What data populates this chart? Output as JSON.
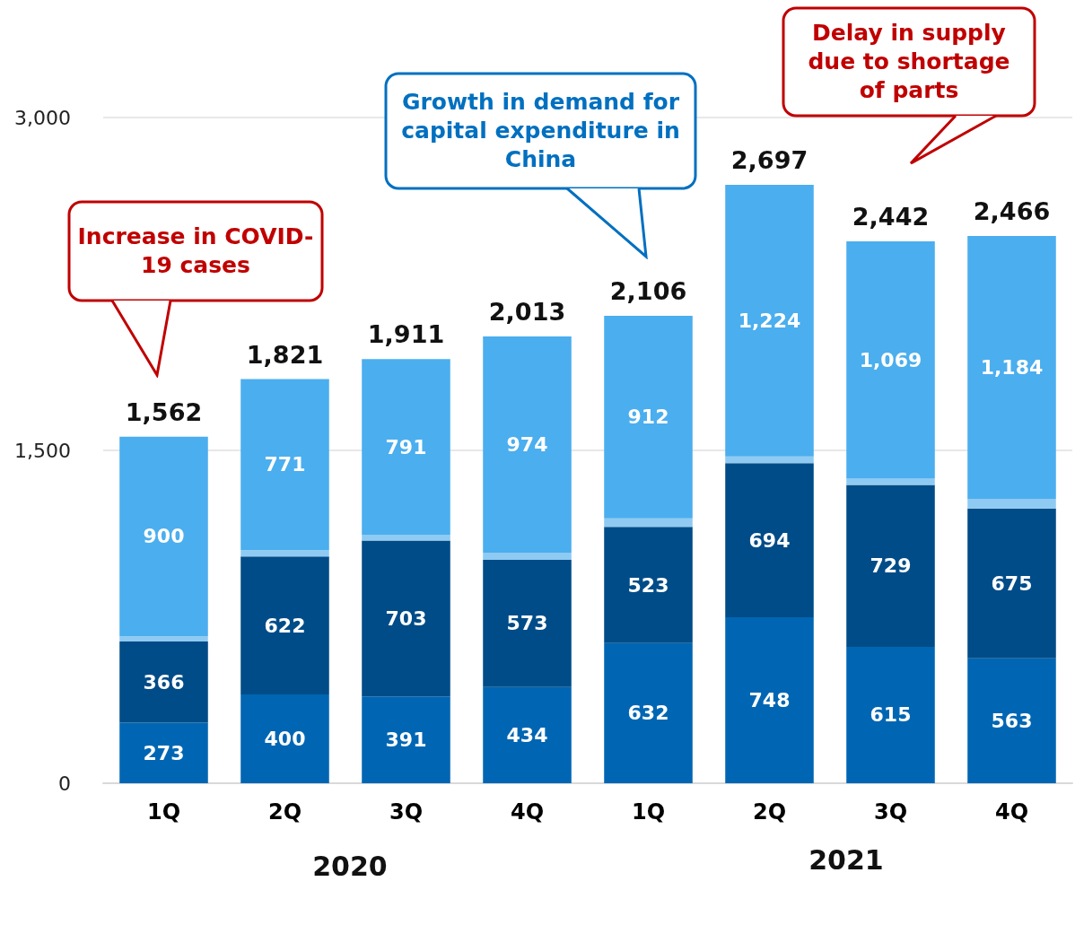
{
  "chart_data": {
    "type": "bar",
    "stacked": true,
    "categories": [
      "1Q",
      "2Q",
      "3Q",
      "4Q",
      "1Q",
      "2Q",
      "3Q",
      "4Q"
    ],
    "series": [
      {
        "color": "#0066b3",
        "values": [
          273,
          400,
          391,
          434,
          632,
          748,
          615,
          563
        ],
        "value_labels": [
          "273",
          "400",
          "391",
          "434",
          "632",
          "748",
          "615",
          "563"
        ]
      },
      {
        "color": "#004c88",
        "values": [
          366,
          622,
          703,
          573,
          523,
          694,
          729,
          675
        ],
        "value_labels": [
          "366",
          "622",
          "703",
          "573",
          "523",
          "694",
          "729",
          "675"
        ]
      },
      {
        "color": "#8fcaf2",
        "values": [
          23,
          28,
          26,
          32,
          39,
          31,
          29,
          44
        ]
      },
      {
        "color": "#4baeee",
        "values": [
          900,
          771,
          791,
          974,
          912,
          1224,
          1069,
          1184
        ],
        "value_labels": [
          "900",
          "771",
          "791",
          "974",
          "912",
          "1,224",
          "1,069",
          "1,184"
        ]
      }
    ],
    "totals": [
      "1,562",
      "1,821",
      "1,911",
      "2,013",
      "2,106",
      "2,697",
      "2,442",
      "2,466"
    ],
    "ylim": [
      0,
      3000
    ],
    "yticks": [
      0,
      {
        "value": 1500,
        "label": "1,500"
      },
      {
        "value": 3000,
        "label": "3,000"
      }
    ],
    "grid": "y",
    "annotations": [
      "Increase in COVID-19 cases",
      "Growth in demand for capital expenditure in China",
      "Delay in supply due to shortage of parts",
      "2020",
      "2021"
    ]
  }
}
